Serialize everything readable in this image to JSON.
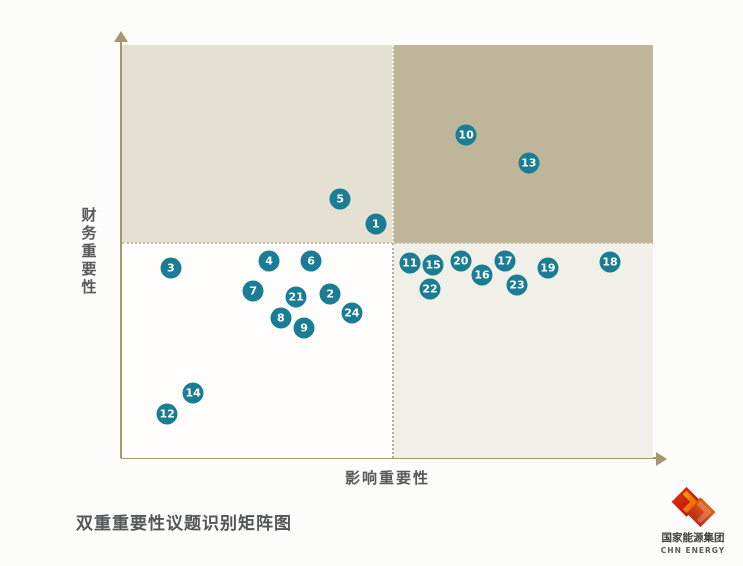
{
  "page": {
    "caption": "双重重要性议题识别矩阵图"
  },
  "chart_data": {
    "type": "scatter",
    "title": "双重重要性议题识别矩阵图",
    "xlabel": "影响重要性",
    "ylabel": "财务重要性",
    "xlim": [
      0,
      100
    ],
    "ylim": [
      0,
      100
    ],
    "grid": false,
    "legend": "none",
    "axis_ticks": "none (relative materiality matrix, no numeric scale shown)",
    "quadrant_divider": {
      "x": 51.0,
      "y": 52.1
    },
    "points": [
      {
        "id": 1,
        "x": 47.8,
        "y": 56.7
      },
      {
        "id": 2,
        "x": 39.2,
        "y": 39.7
      },
      {
        "id": 3,
        "x": 9.2,
        "y": 46.0
      },
      {
        "id": 4,
        "x": 27.7,
        "y": 47.7
      },
      {
        "id": 5,
        "x": 41.1,
        "y": 62.7
      },
      {
        "id": 6,
        "x": 35.6,
        "y": 47.7
      },
      {
        "id": 7,
        "x": 24.7,
        "y": 40.4
      },
      {
        "id": 8,
        "x": 29.9,
        "y": 33.9
      },
      {
        "id": 9,
        "x": 34.3,
        "y": 31.5
      },
      {
        "id": 10,
        "x": 64.8,
        "y": 78.2
      },
      {
        "id": 11,
        "x": 54.2,
        "y": 47.2
      },
      {
        "id": 12,
        "x": 8.5,
        "y": 10.7
      },
      {
        "id": 13,
        "x": 76.6,
        "y": 71.4
      },
      {
        "id": 14,
        "x": 13.4,
        "y": 15.7
      },
      {
        "id": 15,
        "x": 58.6,
        "y": 46.7
      },
      {
        "id": 16,
        "x": 67.8,
        "y": 44.3
      },
      {
        "id": 17,
        "x": 72.1,
        "y": 47.7
      },
      {
        "id": 18,
        "x": 91.9,
        "y": 47.5
      },
      {
        "id": 19,
        "x": 80.2,
        "y": 46.0
      },
      {
        "id": 20,
        "x": 63.8,
        "y": 47.7
      },
      {
        "id": 21,
        "x": 32.8,
        "y": 39.0
      },
      {
        "id": 22,
        "x": 58.0,
        "y": 40.9
      },
      {
        "id": 23,
        "x": 74.4,
        "y": 41.9
      },
      {
        "id": 24,
        "x": 43.3,
        "y": 35.1
      }
    ],
    "colors": {
      "point_fill": "#1a7d93",
      "point_label": "#ffffff",
      "quadrant_top_left": "#e4e0d2",
      "quadrant_top_right": "#bfb59a",
      "quadrant_bottom_left": "#fffefd",
      "quadrant_bottom_right": "#f0efe8",
      "axis": "#a4986c",
      "label_text": "#58595b"
    }
  },
  "logo": {
    "name": "国家能源集团",
    "name_en": "CHN ENERGY",
    "brand_red": "#c8161e"
  }
}
